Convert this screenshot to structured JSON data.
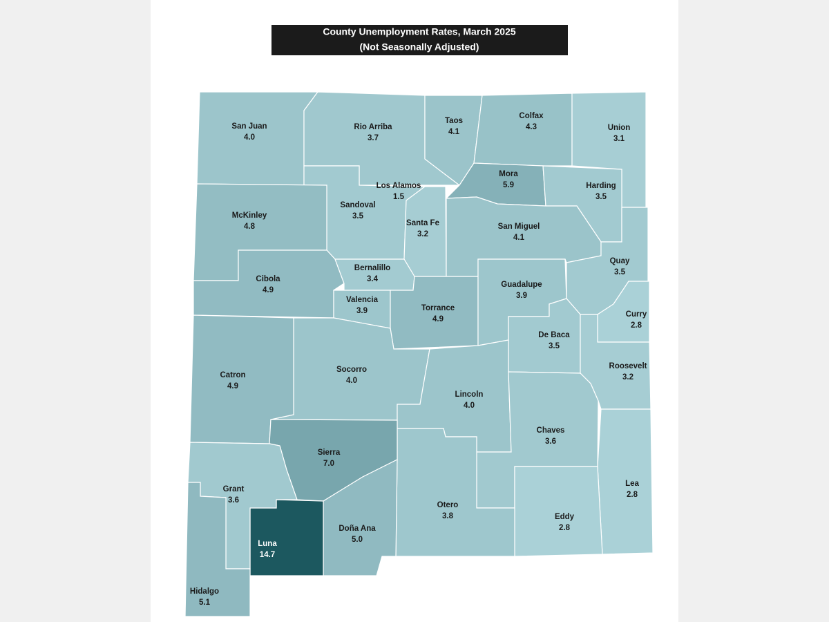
{
  "chart_data": {
    "type": "choropleth",
    "title": "County Unemployment Rates, March 2025",
    "subtitle": "(Not Seasonally Adjusted)",
    "categories": [
      "San Juan",
      "Rio Arriba",
      "Taos",
      "Colfax",
      "Union",
      "Mora",
      "Harding",
      "Los Alamos",
      "Sandoval",
      "Santa Fe",
      "San Miguel",
      "McKinley",
      "Cibola",
      "Bernalillo",
      "Valencia",
      "Torrance",
      "Guadalupe",
      "Quay",
      "Curry",
      "De Baca",
      "Roosevelt",
      "Socorro",
      "Catron",
      "Lincoln",
      "Chaves",
      "Lea",
      "Eddy",
      "Otero",
      "Sierra",
      "Doña Ana",
      "Luna",
      "Grant",
      "Hidalgo"
    ],
    "values": [
      4.0,
      3.7,
      4.1,
      4.3,
      3.1,
      5.9,
      3.5,
      1.5,
      3.5,
      3.2,
      4.1,
      4.8,
      4.9,
      3.4,
      3.9,
      4.9,
      3.9,
      3.5,
      2.8,
      3.5,
      3.2,
      4.0,
      4.9,
      4.0,
      3.6,
      2.8,
      2.8,
      3.8,
      7.0,
      5.0,
      14.7,
      3.6,
      5.1
    ],
    "value_labels": [
      "4.0",
      "3.7",
      "4.1",
      "4.3",
      "3.1",
      "5.9",
      "3.5",
      "1.5",
      "3.5",
      "3.2",
      "4.1",
      "4.8",
      "4.9",
      "3.4",
      "3.9",
      "4.9",
      "3.9",
      "3.5",
      "2.8",
      "3.5",
      "3.2",
      "4.0",
      "4.9",
      "4.0",
      "3.6",
      "2.8",
      "2.8",
      "3.8",
      "7.0",
      "5.0",
      "14.7",
      "3.6",
      "5.1"
    ]
  }
}
